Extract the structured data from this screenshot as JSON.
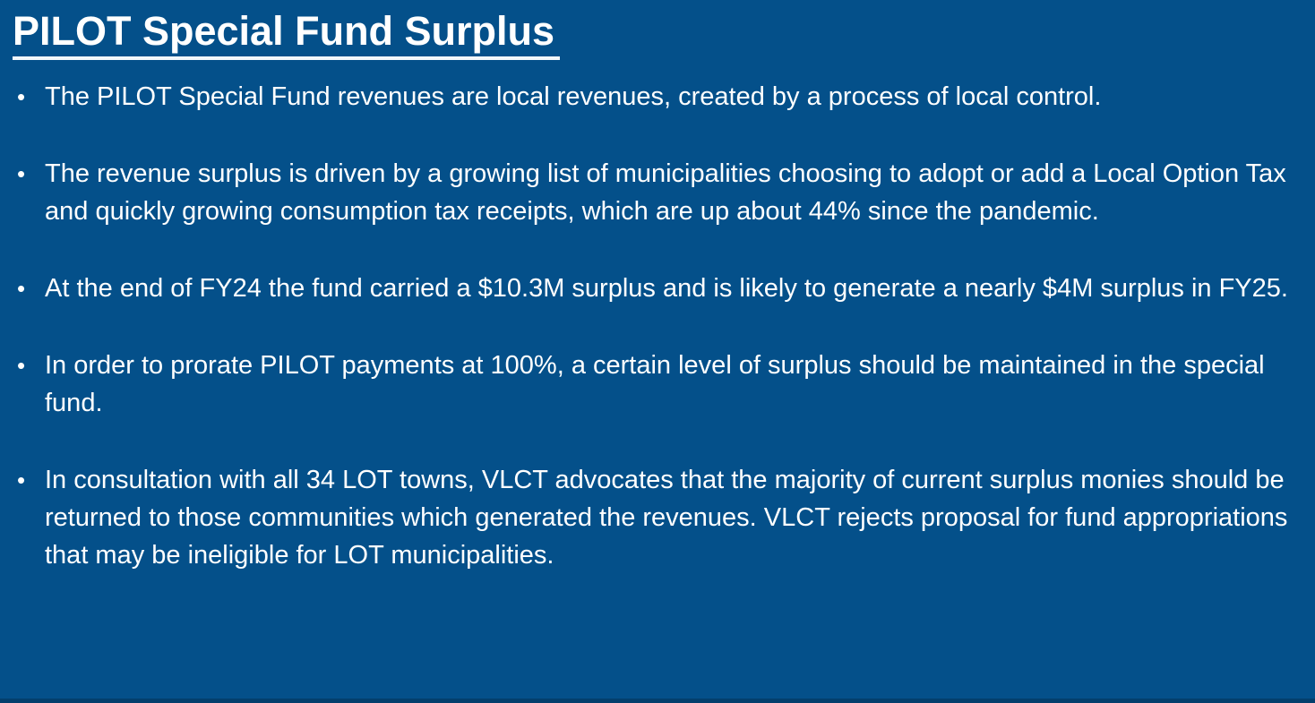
{
  "slide": {
    "title": "PILOT Special Fund Surplus",
    "bullet_glyph": "•",
    "bullets": [
      "The PILOT Special Fund revenues are local revenues, created by a process of local control.",
      "The revenue surplus is driven by a growing list of municipalities choosing to adopt or add a Local Option Tax and quickly growing consumption tax receipts, which are up about 44% since the pandemic.",
      "At the end of FY24 the fund carried a $10.3M surplus and is likely to generate a nearly $4M surplus in FY25.",
      "In order to prorate PILOT payments at 100%, a certain level of surplus should be maintained in the special fund.",
      "In consultation with all 34 LOT towns, VLCT advocates that the majority of current surplus monies should be returned to those communities which generated the revenues. VLCT rejects proposal for fund appropriations that may be ineligible for LOT municipalities."
    ],
    "colors": {
      "background": "#04508A",
      "text": "#FFFFFF",
      "underline": "#F2F7FB",
      "bottom_edge": "#033F6D"
    }
  }
}
